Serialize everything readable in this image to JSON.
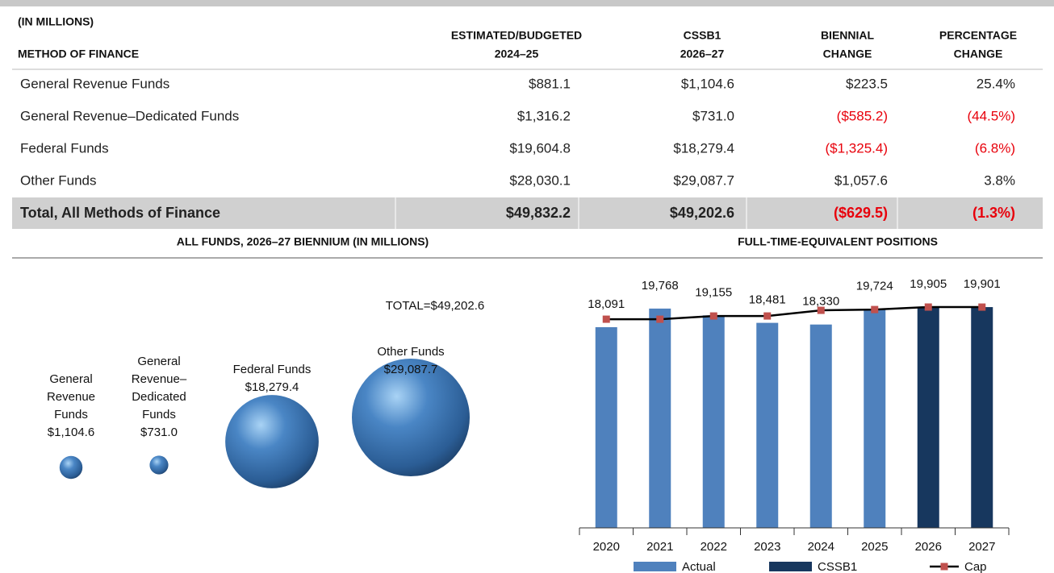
{
  "table": {
    "unit_note": "(IN MILLIONS)",
    "headers": [
      [
        "METHOD OF FINANCE"
      ],
      [
        "ESTIMATED/BUDGETED",
        "2024–25"
      ],
      [
        "CSSB1",
        "2026–27"
      ],
      [
        "BIENNIAL",
        "CHANGE"
      ],
      [
        "PERCENTAGE",
        "CHANGE"
      ]
    ],
    "rows": [
      [
        "General Revenue Funds",
        "$881.1",
        "$1,104.6",
        "$223.5",
        "25.4%"
      ],
      [
        "General Revenue–Dedicated Funds",
        "$1,316.2",
        "$731.0",
        "($585.2)",
        "(44.5%)"
      ],
      [
        "Federal Funds",
        "$19,604.8",
        "$18,279.4",
        "($1,325.4)",
        "(6.8%)"
      ],
      [
        "Other Funds",
        "$28,030.1",
        "$29,087.7",
        "$1,057.6",
        "3.8%"
      ]
    ],
    "total": [
      "Total, All Methods of Finance",
      "$49,832.2",
      "$49,202.6",
      "($629.5)",
      "(1.3%)"
    ]
  },
  "chart_data": [
    {
      "type": "bubble",
      "title": "ALL FUNDS, 2026–27 BIENNIUM (IN MILLIONS)",
      "annotation": "TOTAL=$49,202.6",
      "categories": [
        "General Revenue Funds",
        "General Revenue–Dedicated Funds",
        "Federal Funds",
        "Other Funds"
      ],
      "values": [
        1104.6,
        731.0,
        18279.4,
        29087.7
      ],
      "value_labels": [
        "$1,104.6",
        "$731.0",
        "$18,279.4",
        "$29,087.7"
      ],
      "color": "#4a7ebb"
    },
    {
      "type": "bar",
      "title": "FULL-TIME-EQUIVALENT POSITIONS",
      "categories": [
        "2020",
        "2021",
        "2022",
        "2023",
        "2024",
        "2025",
        "2026",
        "2027"
      ],
      "series": [
        {
          "name": "Actual",
          "type": "bar",
          "color": "#4f81bd",
          "values": [
            18091,
            19768,
            19155,
            18481,
            18330,
            19724,
            null,
            null
          ],
          "value_labels": [
            "18,091",
            "19,768",
            "19,155",
            "18,481",
            "18,330",
            "19,724",
            null,
            null
          ]
        },
        {
          "name": "CSSB1",
          "type": "bar",
          "color": "#17375e",
          "values": [
            null,
            null,
            null,
            null,
            null,
            null,
            19905,
            19901
          ],
          "value_labels": [
            null,
            null,
            null,
            null,
            null,
            null,
            "19,905",
            "19,901"
          ]
        },
        {
          "name": "Cap",
          "type": "line",
          "color": "#000000",
          "marker_color": "#c0504d",
          "values": [
            18810,
            18810,
            19100,
            19100,
            19610,
            19680,
            19905,
            19901
          ]
        }
      ],
      "legend": "bottom"
    }
  ]
}
